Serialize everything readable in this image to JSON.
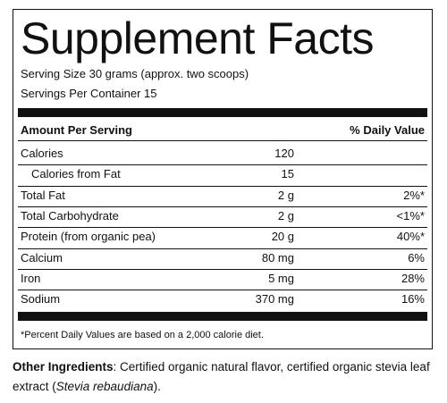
{
  "title": "Supplement Facts",
  "serving_size": "Serving Size 30 grams (approx. two scoops)",
  "servings_per_container": "Servings Per Container 15",
  "header": {
    "amount": "Amount Per Serving",
    "daily_value": "% Daily Value"
  },
  "rows": [
    {
      "name": "Calories",
      "amount": "120"
    },
    {
      "name": "Calories from Fat",
      "amount": "15",
      "indent": true
    },
    {
      "name": "Total Fat",
      "amount": "2 g",
      "dv": "2%*"
    },
    {
      "name": "Total Carbohydrate",
      "amount": "2 g",
      "dv": "<1%*"
    },
    {
      "name": "Protein (from organic pea)",
      "amount": "20 g",
      "dv": "40%*"
    },
    {
      "name": "Calcium",
      "amount": "80 mg",
      "dv": "6%"
    },
    {
      "name": "Iron",
      "amount": "5 mg",
      "dv": "28%"
    },
    {
      "name": "Sodium",
      "amount": "370 mg",
      "dv": "16%"
    }
  ],
  "footnote": "*Percent Daily Values are based on a 2,000 calorie diet.",
  "other_ingredients": {
    "label": "Other Ingredients",
    "text": ": Certified organic natural flavor, certified organic stevia leaf extract (",
    "italic": "Stevia rebaudiana",
    "end": ")."
  }
}
